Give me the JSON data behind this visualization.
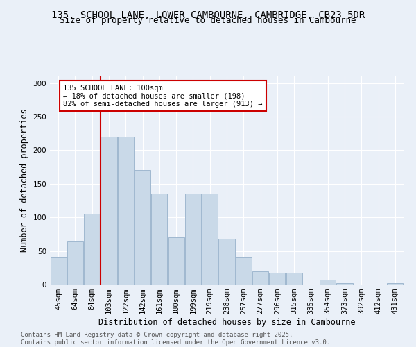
{
  "title_line1": "135, SCHOOL LANE, LOWER CAMBOURNE, CAMBRIDGE, CB23 5DR",
  "title_line2": "Size of property relative to detached houses in Cambourne",
  "xlabel": "Distribution of detached houses by size in Cambourne",
  "ylabel": "Number of detached properties",
  "bar_labels": [
    "45sqm",
    "64sqm",
    "84sqm",
    "103sqm",
    "122sqm",
    "142sqm",
    "161sqm",
    "180sqm",
    "199sqm",
    "219sqm",
    "238sqm",
    "257sqm",
    "277sqm",
    "296sqm",
    "315sqm",
    "335sqm",
    "354sqm",
    "373sqm",
    "392sqm",
    "412sqm",
    "431sqm"
  ],
  "bar_values": [
    40,
    65,
    105,
    220,
    220,
    170,
    135,
    70,
    135,
    135,
    68,
    40,
    20,
    18,
    18,
    0,
    7,
    2,
    0,
    0,
    2
  ],
  "bar_color": "#c9d9e8",
  "bar_edgecolor": "#a0b8d0",
  "vline_x_idx": 3,
  "vline_color": "#cc0000",
  "annotation_text": "135 SCHOOL LANE: 100sqm\n← 18% of detached houses are smaller (198)\n82% of semi-detached houses are larger (913) →",
  "annotation_box_color": "#ffffff",
  "annotation_box_edgecolor": "#cc0000",
  "ylim": [
    0,
    310
  ],
  "yticks": [
    0,
    50,
    100,
    150,
    200,
    250,
    300
  ],
  "bg_color": "#eaf0f8",
  "footer_text": "Contains HM Land Registry data © Crown copyright and database right 2025.\nContains public sector information licensed under the Open Government Licence v3.0.",
  "title_fontsize": 10,
  "subtitle_fontsize": 9,
  "axis_label_fontsize": 8.5,
  "tick_fontsize": 7.5,
  "annotation_fontsize": 7.5,
  "footer_fontsize": 6.5
}
